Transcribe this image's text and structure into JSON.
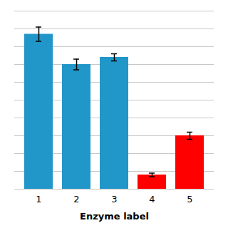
{
  "chart_data": {
    "type": "bar",
    "xlabel": "Enzyme label",
    "categories": [
      "1",
      "2",
      "3",
      "4",
      "5"
    ],
    "values": [
      87,
      70,
      74,
      8,
      30
    ],
    "errors": [
      4,
      3,
      2,
      1,
      2
    ],
    "colors": [
      "#2196C8",
      "#2196C8",
      "#2196C8",
      "#FF0000",
      "#FF0000"
    ],
    "ylim": [
      0,
      100
    ],
    "yticks": [
      0,
      10,
      20,
      30,
      40,
      50,
      60,
      70,
      80,
      90,
      100
    ],
    "grid": true,
    "tick_labels": "x"
  }
}
